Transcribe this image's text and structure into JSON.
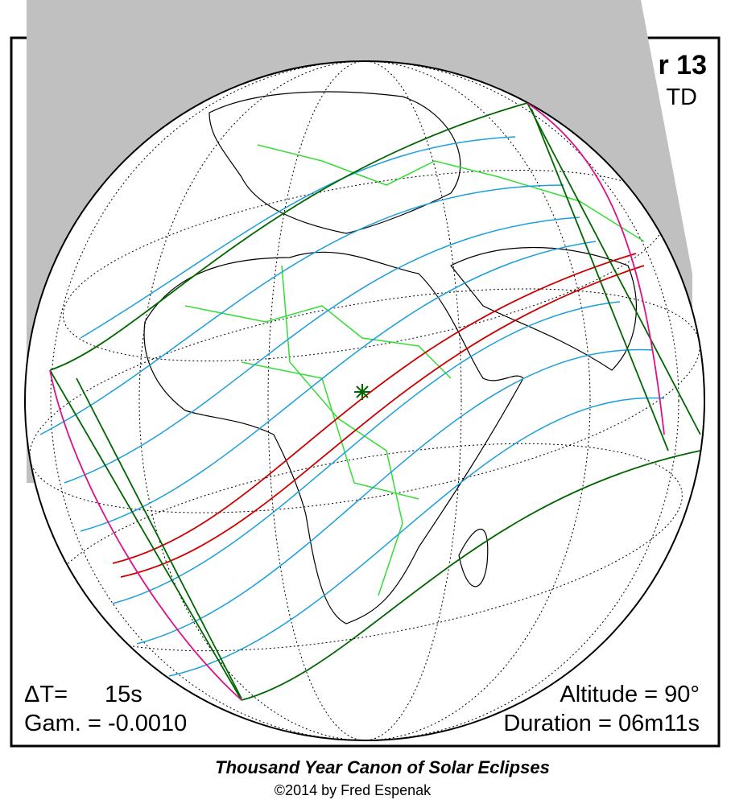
{
  "header": {
    "title_fragment": "r 13",
    "time_system": "TD"
  },
  "parameters": {
    "delta_t_label": "ΔT=",
    "delta_t_value": "15s",
    "gamma": "Gam. = -0.0010",
    "altitude": "Altitude = 90°",
    "duration": "Duration = 06m11s"
  },
  "footer": {
    "title": "Thousand Year Canon of Solar Eclipses",
    "credit": "©2014 by Fred Espenak"
  }
}
